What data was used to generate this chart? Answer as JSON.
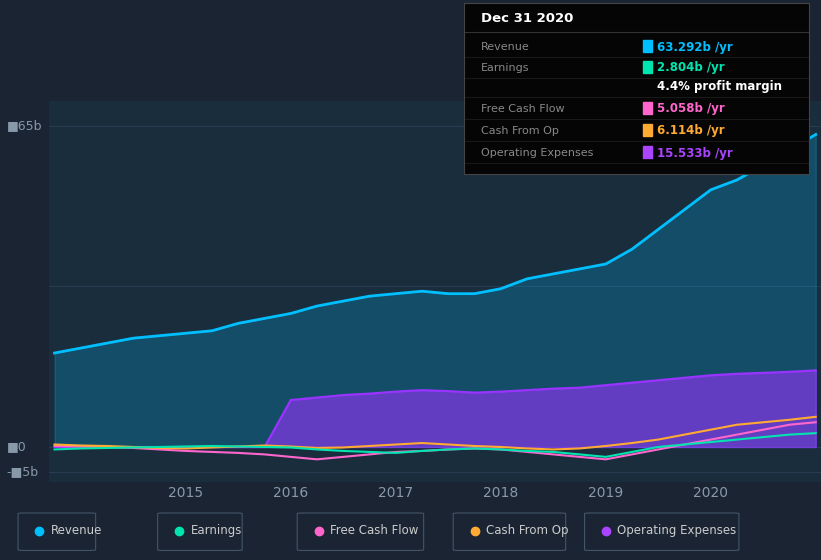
{
  "bg_color": "#1a2433",
  "plot_bg_color": "#1a2d3d",
  "grid_color": "#2a3f55",
  "years": [
    2013.75,
    2014.0,
    2014.25,
    2014.5,
    2014.75,
    2015.0,
    2015.25,
    2015.5,
    2015.75,
    2016.0,
    2016.25,
    2016.5,
    2016.75,
    2017.0,
    2017.25,
    2017.5,
    2017.75,
    2018.0,
    2018.25,
    2018.5,
    2018.75,
    2019.0,
    2019.25,
    2019.5,
    2019.75,
    2020.0,
    2020.25,
    2020.5,
    2020.75,
    2021.0
  ],
  "revenue": [
    19,
    20,
    21,
    22,
    22.5,
    23,
    23.5,
    25,
    26,
    27,
    28.5,
    29.5,
    30.5,
    31,
    31.5,
    31,
    31,
    32,
    34,
    35,
    36,
    37,
    40,
    44,
    48,
    52,
    54,
    57,
    60,
    63.2
  ],
  "earnings": [
    -0.5,
    -0.3,
    -0.2,
    -0.1,
    0.0,
    0.1,
    0.2,
    0.1,
    0.0,
    -0.1,
    -0.5,
    -0.8,
    -1.0,
    -1.2,
    -0.8,
    -0.5,
    -0.3,
    -0.5,
    -0.8,
    -1.0,
    -1.5,
    -2.0,
    -1.0,
    0.0,
    0.5,
    1.0,
    1.5,
    2.0,
    2.5,
    2.8
  ],
  "free_cash_flow": [
    0.2,
    0.1,
    0.0,
    -0.2,
    -0.5,
    -0.8,
    -1.0,
    -1.2,
    -1.5,
    -2.0,
    -2.5,
    -2.0,
    -1.5,
    -1.0,
    -0.8,
    -0.5,
    -0.3,
    -0.5,
    -1.0,
    -1.5,
    -2.0,
    -2.5,
    -1.5,
    -0.5,
    0.5,
    1.5,
    2.5,
    3.5,
    4.5,
    5.0
  ],
  "cash_from_op": [
    0.5,
    0.3,
    0.2,
    0.0,
    -0.2,
    -0.3,
    -0.1,
    0.1,
    0.3,
    0.1,
    -0.2,
    -0.1,
    0.2,
    0.5,
    0.8,
    0.5,
    0.2,
    0.0,
    -0.3,
    -0.5,
    -0.3,
    0.2,
    0.8,
    1.5,
    2.5,
    3.5,
    4.5,
    5.0,
    5.5,
    6.1
  ],
  "operating_expenses": [
    0,
    0,
    0,
    0,
    0,
    0,
    0,
    0,
    0,
    9.5,
    10.0,
    10.5,
    10.8,
    11.2,
    11.5,
    11.3,
    11.0,
    11.2,
    11.5,
    11.8,
    12.0,
    12.5,
    13.0,
    13.5,
    14.0,
    14.5,
    14.8,
    15.0,
    15.2,
    15.5
  ],
  "ylim": [
    -7,
    70
  ],
  "x_ticks": [
    2015,
    2016,
    2017,
    2018,
    2019,
    2020
  ],
  "legend": [
    {
      "label": "Revenue",
      "color": "#00bfff"
    },
    {
      "label": "Earnings",
      "color": "#00e5b0"
    },
    {
      "label": "Free Cash Flow",
      "color": "#ff66cc"
    },
    {
      "label": "Cash From Op",
      "color": "#ffaa33"
    },
    {
      "label": "Operating Expenses",
      "color": "#aa44ff"
    }
  ],
  "colors": {
    "revenue": "#00bfff",
    "earnings": "#00e5b0",
    "free_cash_flow": "#ff66cc",
    "cash_from_op": "#ffaa33",
    "operating_expenses": "#9933ff"
  },
  "info_box": {
    "title": "Dec 31 2020",
    "rows": [
      {
        "label": "Revenue",
        "value": "63.292b /yr",
        "value_color": "#00bfff"
      },
      {
        "label": "Earnings",
        "value": "2.804b /yr",
        "value_color": "#00e5b0"
      },
      {
        "label": "",
        "value": "4.4% profit margin",
        "value_color": "#ffffff"
      },
      {
        "label": "Free Cash Flow",
        "value": "5.058b /yr",
        "value_color": "#ff66cc"
      },
      {
        "label": "Cash From Op",
        "value": "6.114b /yr",
        "value_color": "#ffaa33"
      },
      {
        "label": "Operating Expenses",
        "value": "15.533b /yr",
        "value_color": "#aa44ff"
      }
    ]
  }
}
